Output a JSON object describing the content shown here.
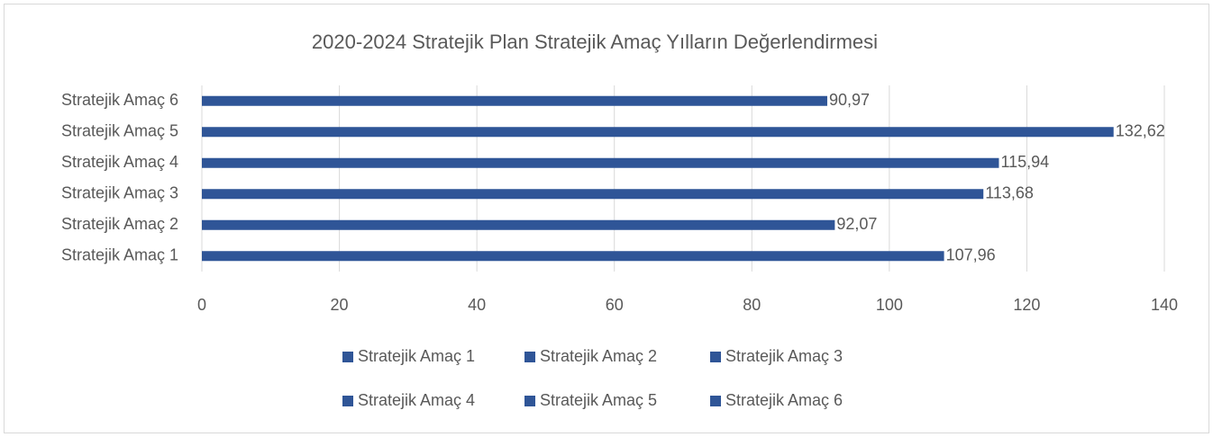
{
  "chart_data": {
    "type": "hbar",
    "title": "2020-2024 Stratejik Plan Stratejik Amaç  Yılların Değerlendirmesi",
    "categories": [
      "Stratejik Amaç 1",
      "Stratejik Amaç 2",
      "Stratejik Amaç 3",
      "Stratejik Amaç 4",
      "Stratejik Amaç 5",
      "Stratejik Amaç 6"
    ],
    "values": [
      107.96,
      92.07,
      113.68,
      115.94,
      132.62,
      90.97
    ],
    "value_labels": [
      "107,96",
      "92,07",
      "113,68",
      "115,94",
      "132,62",
      "90,97"
    ],
    "color": "#2f5597",
    "legend": [
      "Stratejik Amaç 1",
      "Stratejik Amaç 2",
      "Stratejik Amaç 3",
      "Stratejik Amaç 4",
      "Stratejik Amaç 5",
      "Stratejik Amaç 6"
    ],
    "xlim": [
      0,
      140
    ],
    "xticks": [
      0,
      20,
      40,
      60,
      80,
      100,
      120,
      140
    ],
    "grid": true
  }
}
